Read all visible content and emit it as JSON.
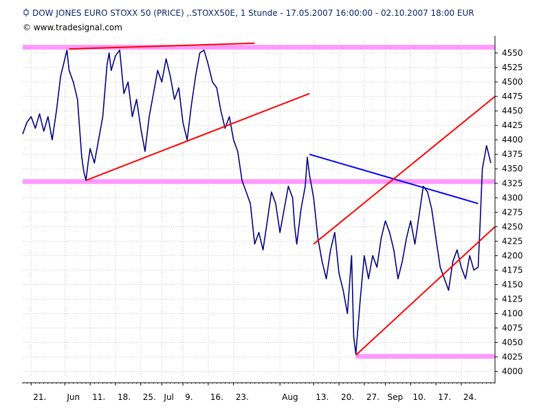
{
  "header": {
    "title": "DOW JONES EURO STOXX 50 (PRICE) ,.STOXX50E, 1 Stunde - 17.05.2007 16:00:00 - 02.10.2007 18:00 EUR",
    "copyright": "© www.tradesignal.com",
    "title_icon": "chart-candle-icon"
  },
  "chart_data": {
    "type": "line",
    "title": "DOW JONES EURO STOXX 50 (PRICE) ,.STOXX50E, 1 Stunde - 17.05.2007 16:00:00 - 02.10.2007 18:00 EUR",
    "xlabel": "",
    "ylabel": "",
    "ylim": [
      3990,
      4575
    ],
    "y_ticks": [
      4000,
      4025,
      4050,
      4075,
      4100,
      4125,
      4150,
      4175,
      4200,
      4225,
      4250,
      4275,
      4300,
      4325,
      4350,
      4375,
      4400,
      4425,
      4450,
      4475,
      4500,
      4525,
      4550
    ],
    "x_ticks": [
      {
        "label": "21.",
        "x": 2
      },
      {
        "label": "Jun",
        "x": 10
      },
      {
        "label": "11.",
        "x": 16
      },
      {
        "label": "18.",
        "x": 22
      },
      {
        "label": "25.",
        "x": 28
      },
      {
        "label": "Jul",
        "x": 33
      },
      {
        "label": "9.",
        "x": 38
      },
      {
        "label": "16.",
        "x": 44
      },
      {
        "label": "23.",
        "x": 50
      },
      {
        "label": "Aug",
        "x": 61
      },
      {
        "label": "13.",
        "x": 69
      },
      {
        "label": "20.",
        "x": 75
      },
      {
        "label": "27.",
        "x": 81
      },
      {
        "label": "Sep",
        "x": 86
      },
      {
        "label": "10.",
        "x": 92
      },
      {
        "label": "17.",
        "x": 98
      },
      {
        "label": "24.",
        "x": 104
      }
    ],
    "xlim": [
      0,
      112
    ],
    "series": [
      {
        "color": "#000080",
        "points": [
          [
            0,
            4410
          ],
          [
            1,
            4430
          ],
          [
            2,
            4440
          ],
          [
            3,
            4420
          ],
          [
            4,
            4445
          ],
          [
            5,
            4415
          ],
          [
            6,
            4440
          ],
          [
            7,
            4400
          ],
          [
            8,
            4450
          ],
          [
            9,
            4510
          ],
          [
            10,
            4540
          ],
          [
            10.5,
            4555
          ],
          [
            11,
            4520
          ],
          [
            12,
            4500
          ],
          [
            13,
            4470
          ],
          [
            14,
            4370
          ],
          [
            14.5,
            4345
          ],
          [
            15,
            4330
          ],
          [
            15.5,
            4360
          ],
          [
            16,
            4385
          ],
          [
            17,
            4360
          ],
          [
            18,
            4400
          ],
          [
            19,
            4440
          ],
          [
            20,
            4530
          ],
          [
            20.5,
            4550
          ],
          [
            21,
            4520
          ],
          [
            22,
            4545
          ],
          [
            23,
            4555
          ],
          [
            24,
            4480
          ],
          [
            25,
            4500
          ],
          [
            26,
            4440
          ],
          [
            27,
            4470
          ],
          [
            28,
            4420
          ],
          [
            29,
            4380
          ],
          [
            30,
            4440
          ],
          [
            31,
            4480
          ],
          [
            32,
            4520
          ],
          [
            33,
            4500
          ],
          [
            34,
            4540
          ],
          [
            35,
            4510
          ],
          [
            36,
            4470
          ],
          [
            37,
            4490
          ],
          [
            38,
            4430
          ],
          [
            39,
            4400
          ],
          [
            40,
            4460
          ],
          [
            41,
            4510
          ],
          [
            42,
            4550
          ],
          [
            43,
            4555
          ],
          [
            44,
            4530
          ],
          [
            45,
            4500
          ],
          [
            46,
            4490
          ],
          [
            47,
            4450
          ],
          [
            48,
            4420
          ],
          [
            49,
            4440
          ],
          [
            50,
            4400
          ],
          [
            51,
            4380
          ],
          [
            52,
            4330
          ],
          [
            53,
            4310
          ],
          [
            54,
            4290
          ],
          [
            55,
            4220
          ],
          [
            56,
            4240
          ],
          [
            57,
            4210
          ],
          [
            58,
            4260
          ],
          [
            59,
            4310
          ],
          [
            60,
            4290
          ],
          [
            61,
            4240
          ],
          [
            62,
            4280
          ],
          [
            63,
            4320
          ],
          [
            64,
            4300
          ],
          [
            64.5,
            4250
          ],
          [
            65,
            4220
          ],
          [
            66,
            4280
          ],
          [
            67,
            4320
          ],
          [
            67.5,
            4370
          ],
          [
            68,
            4340
          ],
          [
            69,
            4300
          ],
          [
            70,
            4230
          ],
          [
            71,
            4190
          ],
          [
            72,
            4160
          ],
          [
            73,
            4210
          ],
          [
            74,
            4240
          ],
          [
            75,
            4170
          ],
          [
            76,
            4140
          ],
          [
            77,
            4100
          ],
          [
            78,
            4200
          ],
          [
            78.5,
            4060
          ],
          [
            79,
            4030
          ],
          [
            80,
            4120
          ],
          [
            81,
            4200
          ],
          [
            82,
            4160
          ],
          [
            83,
            4200
          ],
          [
            84,
            4180
          ],
          [
            85,
            4230
          ],
          [
            86,
            4260
          ],
          [
            87,
            4240
          ],
          [
            88,
            4210
          ],
          [
            89,
            4160
          ],
          [
            90,
            4190
          ],
          [
            91,
            4230
          ],
          [
            92,
            4260
          ],
          [
            93,
            4220
          ],
          [
            94,
            4270
          ],
          [
            95,
            4320
          ],
          [
            96,
            4310
          ],
          [
            97,
            4280
          ],
          [
            98,
            4230
          ],
          [
            99,
            4180
          ],
          [
            100,
            4160
          ],
          [
            101,
            4140
          ],
          [
            102,
            4190
          ],
          [
            103,
            4210
          ],
          [
            104,
            4180
          ],
          [
            105,
            4160
          ],
          [
            106,
            4200
          ],
          [
            107,
            4175
          ],
          [
            108,
            4180
          ],
          [
            108.5,
            4260
          ],
          [
            109,
            4350
          ],
          [
            110,
            4390
          ],
          [
            111,
            4360
          ]
        ]
      }
    ]
  },
  "overlay_data": {
    "hbands": [
      {
        "y": 4560,
        "x0": 0,
        "x1": 112,
        "color": "#ff99ff"
      },
      {
        "y": 4328,
        "x0": 0,
        "x1": 112,
        "color": "#ff99ff"
      },
      {
        "y": 4026,
        "x0": 79,
        "x1": 112,
        "color": "#ff99ff"
      }
    ],
    "trend_lines": [
      {
        "x0": 11,
        "y0": 4557,
        "x1": 55,
        "y1": 4567,
        "color": "#ff0000"
      },
      {
        "x0": 15,
        "y0": 4330,
        "x1": 68,
        "y1": 4480,
        "color": "#ff0000"
      },
      {
        "x0": 68,
        "y0": 4375,
        "x1": 108,
        "y1": 4290,
        "color": "#0000ff"
      },
      {
        "x0": 69,
        "y0": 4220,
        "x1": 112,
        "y1": 4475,
        "color": "#ff0000"
      },
      {
        "x0": 79,
        "y0": 4028,
        "x1": 112,
        "y1": 4250,
        "color": "#ff0000"
      }
    ]
  }
}
